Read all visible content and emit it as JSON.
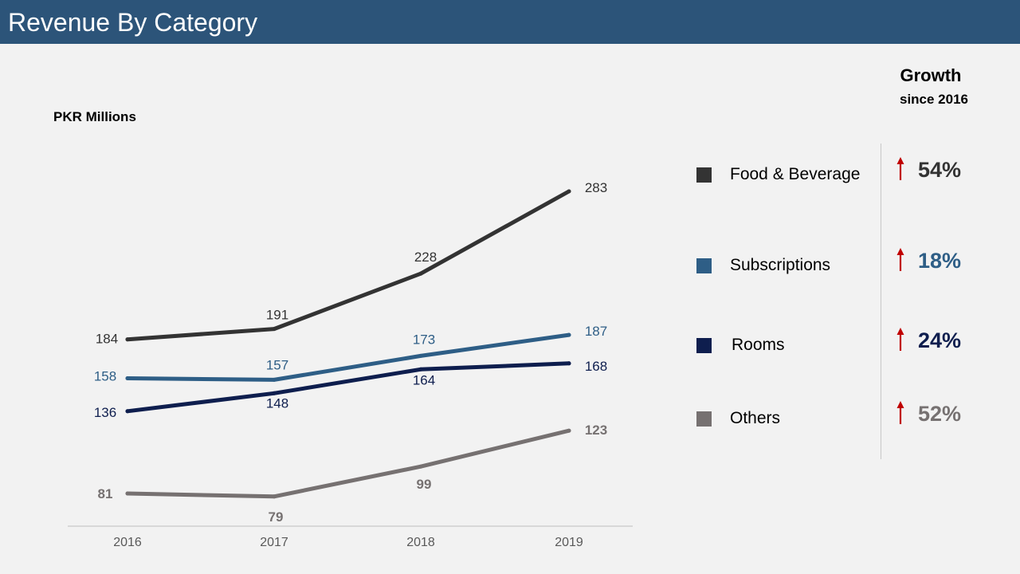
{
  "header": {
    "title": "Revenue By Category"
  },
  "growth_panel": {
    "title": "Growth",
    "subtitle": "since 2016",
    "items": [
      {
        "label": "Food & Beverage",
        "color": "#333333",
        "growth": "54%",
        "arrow_color": "#c00000"
      },
      {
        "label": "Subscriptions",
        "color": "#2e5e86",
        "growth": "18%",
        "arrow_color": "#c00000"
      },
      {
        "label": "Rooms",
        "color": "#0e1e4e",
        "growth": "24%",
        "arrow_color": "#c00000"
      },
      {
        "label": "Others",
        "color": "#767171",
        "growth": "52%",
        "arrow_color": "#c00000"
      }
    ]
  },
  "chart_data": {
    "type": "line",
    "title": "",
    "ylabel": "PKR Millions",
    "xlabel": "",
    "x": [
      "2016",
      "2017",
      "2018",
      "2019"
    ],
    "ylim": [
      70,
      290
    ],
    "grid": false,
    "series": [
      {
        "name": "Food & Beverage",
        "color": "#333333",
        "values": [
          184,
          191,
          228,
          283
        ]
      },
      {
        "name": "Subscriptions",
        "color": "#2e5e86",
        "values": [
          158,
          157,
          173,
          187
        ]
      },
      {
        "name": "Rooms",
        "color": "#0e1e4e",
        "values": [
          136,
          148,
          164,
          168
        ]
      },
      {
        "name": "Others",
        "color": "#767171",
        "values": [
          81,
          79,
          99,
          123
        ]
      }
    ]
  }
}
